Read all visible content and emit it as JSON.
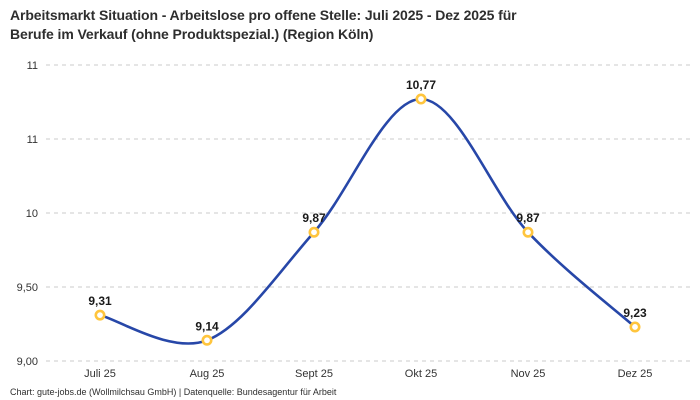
{
  "header": {
    "title_lines": [
      "Arbeitsmarkt Situation - Arbeitslose pro offene Stelle: Juli 2025 - Dez 2025 für",
      "Berufe im Verkauf (ohne Produktspezial.) (Region Köln)"
    ]
  },
  "footer": {
    "credit": "Chart: gute-jobs.de (Wollmilchsau GmbH) | Datenquelle: Bundesagentur für Arbeit"
  },
  "chart_data": {
    "type": "line",
    "title": "Arbeitsmarkt Situation - Arbeitslose pro offene Stelle: Juli 2025 - Dez 2025 für Berufe im Verkauf (ohne Produktspezial.) (Region Köln)",
    "categories": [
      "Juli 25",
      "Aug 25",
      "Sept 25",
      "Okt 25",
      "Nov 25",
      "Dez 25"
    ],
    "values": [
      9.31,
      9.14,
      9.87,
      10.77,
      9.87,
      9.23
    ],
    "value_labels": [
      "9,31",
      "9,14",
      "9,87",
      "10,77",
      "9,87",
      "9,23"
    ],
    "xlabel": "",
    "ylabel": "",
    "ylim": [
      9.0,
      11.0
    ],
    "yticks": [
      {
        "value": 9.0,
        "label": "9,00"
      },
      {
        "value": 9.5,
        "label": "9,50"
      },
      {
        "value": 10.0,
        "label": "10"
      },
      {
        "value": 10.5,
        "label": "11"
      },
      {
        "value": 11.0,
        "label": "11"
      }
    ],
    "grid": "horizontal-dashed",
    "legend": "none",
    "smooth": true,
    "colors": {
      "line": "#2747a8",
      "marker_ring": "#ffc53d",
      "marker_fill": "#ffffff",
      "grid": "#cbcbcb",
      "data_label": "#1a1a1a",
      "axis_text": "#333333"
    }
  }
}
